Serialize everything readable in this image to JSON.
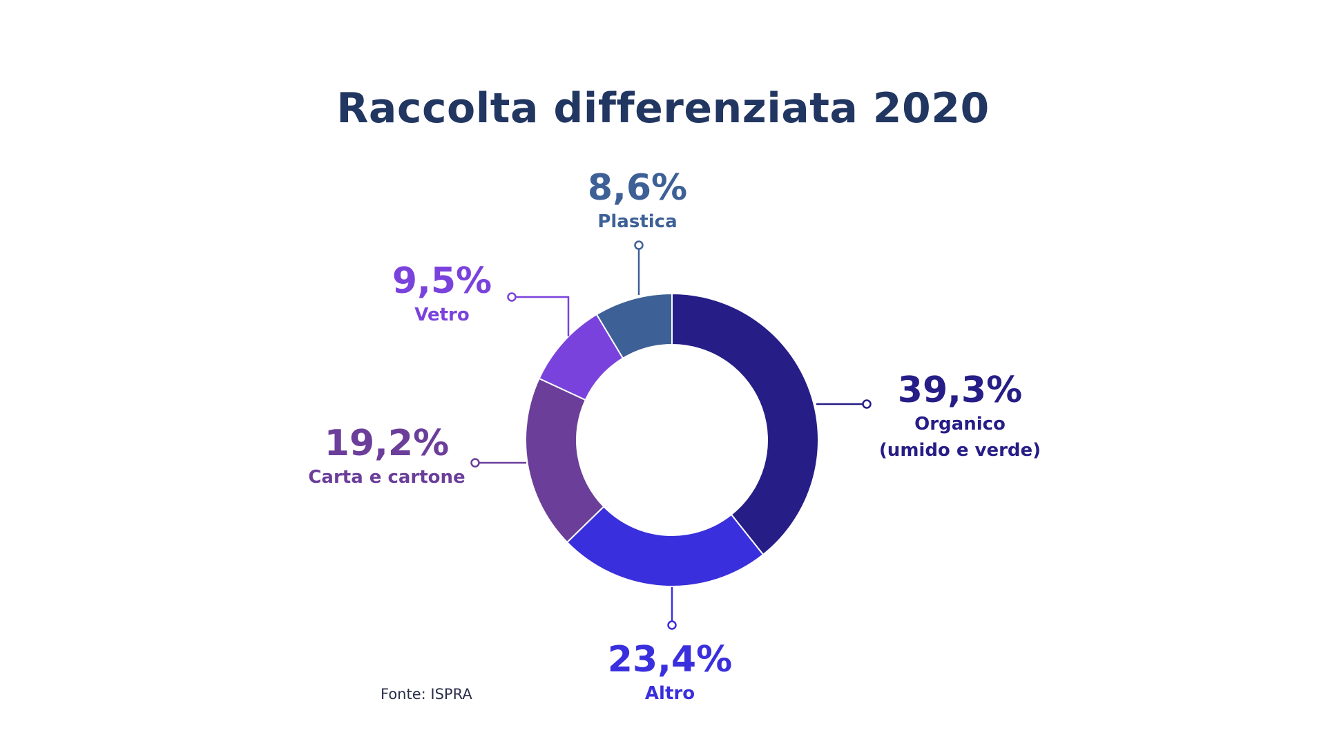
{
  "chart_data": {
    "type": "pie",
    "title": "Raccolta differenziata 2020",
    "unit": "%",
    "categories": [
      "Organico (umido e verde)",
      "Altro",
      "Carta e cartone",
      "Vetro",
      "Plastica"
    ],
    "values": [
      39.3,
      23.4,
      19.2,
      9.5,
      8.6
    ],
    "slices": [
      {
        "id": "organico",
        "value": 39.3,
        "value_label": "39,3%",
        "name_lines": [
          "Organico",
          "(umido e verde)"
        ],
        "color": "#261d87"
      },
      {
        "id": "altro",
        "value": 23.4,
        "value_label": "23,4%",
        "name_lines": [
          "Altro"
        ],
        "color": "#3a2fdc"
      },
      {
        "id": "carta",
        "value": 19.2,
        "value_label": "19,2%",
        "name_lines": [
          "Carta e cartone"
        ],
        "color": "#6b3e9a"
      },
      {
        "id": "vetro",
        "value": 9.5,
        "value_label": "9,5%",
        "name_lines": [
          "Vetro"
        ],
        "color": "#7a42dc"
      },
      {
        "id": "plastica",
        "value": 8.6,
        "value_label": "8,6%",
        "name_lines": [
          "Plastica"
        ],
        "color": "#3d6096"
      }
    ],
    "donut": true,
    "legend": "none"
  },
  "source": "Fonte: ISPRA"
}
